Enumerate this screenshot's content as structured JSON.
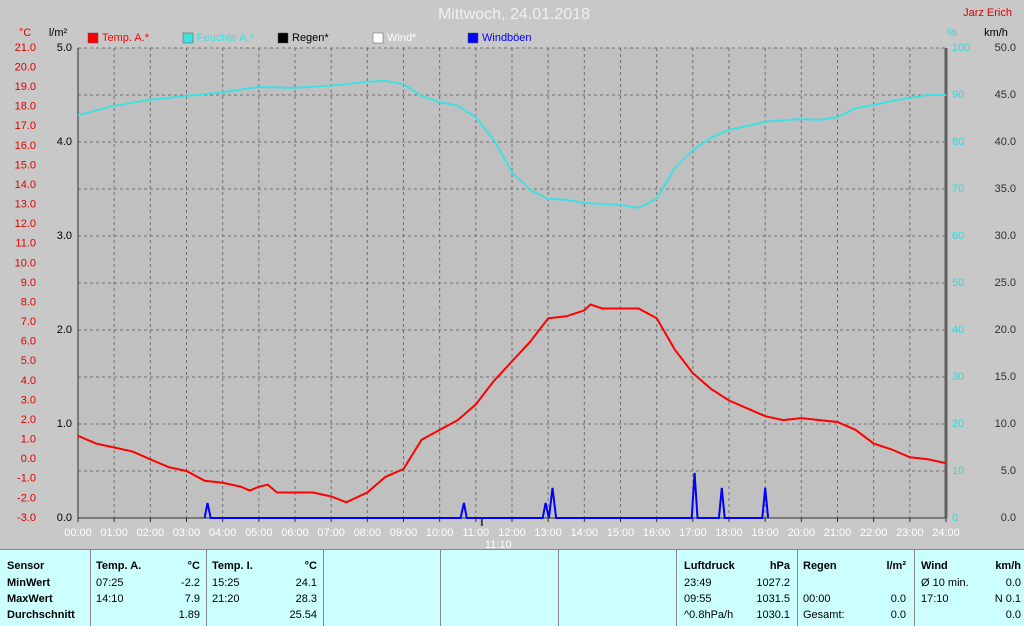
{
  "chart_data": {
    "type": "line",
    "title": "Mittwoch, 24.01.2018",
    "author": "Jarz Erich",
    "ylabel": "°C",
    "y2label": "%",
    "y3label": "l/m²",
    "y4label": "km/h",
    "xlim": [
      0,
      24
    ],
    "xticks": [
      {
        "value": 0,
        "label": "00:00"
      },
      {
        "value": 1,
        "label": "01:00"
      },
      {
        "value": 2,
        "label": "02:00"
      },
      {
        "value": 3,
        "label": "03:00"
      },
      {
        "value": 4,
        "label": "04:00"
      },
      {
        "value": 5,
        "label": "05:00"
      },
      {
        "value": 6,
        "label": "06:00"
      },
      {
        "value": 7,
        "label": "07:00"
      },
      {
        "value": 8,
        "label": "08:00"
      },
      {
        "value": 9,
        "label": "09:00"
      },
      {
        "value": 10,
        "label": "10:00"
      },
      {
        "value": 11,
        "label": "11:00"
      },
      {
        "value": 12,
        "label": "12:00"
      },
      {
        "value": 13,
        "label": "13:00"
      },
      {
        "value": 14,
        "label": "14:00"
      },
      {
        "value": 15,
        "label": "15:00"
      },
      {
        "value": 16,
        "label": "16:00"
      },
      {
        "value": 17,
        "label": "17:00"
      },
      {
        "value": 18,
        "label": "18:00"
      },
      {
        "value": 19,
        "label": "19:00"
      },
      {
        "value": 20,
        "label": "20:00"
      },
      {
        "value": 21,
        "label": "21:00"
      },
      {
        "value": 22,
        "label": "22:00"
      },
      {
        "value": 23,
        "label": "23:00"
      },
      {
        "value": 24,
        "label": "24:00"
      }
    ],
    "marker": {
      "value": 11.1667,
      "label": "11:10"
    },
    "ylim": [
      -3,
      21
    ],
    "yticks": [
      {
        "value": -3,
        "label": "-3.0"
      },
      {
        "value": -2,
        "label": "-2.0"
      },
      {
        "value": -1,
        "label": "-1.0"
      },
      {
        "value": 0,
        "label": "0.0"
      },
      {
        "value": 1,
        "label": "1.0"
      },
      {
        "value": 2,
        "label": "2.0"
      },
      {
        "value": 3,
        "label": "3.0"
      },
      {
        "value": 4,
        "label": "4.0"
      },
      {
        "value": 5,
        "label": "5.0"
      },
      {
        "value": 6,
        "label": "6.0"
      },
      {
        "value": 7,
        "label": "7.0"
      },
      {
        "value": 8,
        "label": "8.0"
      },
      {
        "value": 9,
        "label": "9.0"
      },
      {
        "value": 10,
        "label": "10.0"
      },
      {
        "value": 11,
        "label": "11.0"
      },
      {
        "value": 12,
        "label": "12.0"
      },
      {
        "value": 13,
        "label": "13.0"
      },
      {
        "value": 14,
        "label": "14.0"
      },
      {
        "value": 15,
        "label": "15.0"
      },
      {
        "value": 16,
        "label": "16.0"
      },
      {
        "value": 17,
        "label": "17.0"
      },
      {
        "value": 18,
        "label": "18.0"
      },
      {
        "value": 19,
        "label": "19.0"
      },
      {
        "value": 20,
        "label": "20.0"
      },
      {
        "value": 21,
        "label": "21.0"
      }
    ],
    "y2lim": [
      0,
      100
    ],
    "y2ticks": [
      0,
      10,
      20,
      30,
      40,
      50,
      60,
      70,
      80,
      90,
      100
    ],
    "y3lim": [
      0,
      5
    ],
    "y3ticks": [
      {
        "value": 0,
        "label": "0.0"
      },
      {
        "value": 1,
        "label": "1.0"
      },
      {
        "value": 2,
        "label": "2.0"
      },
      {
        "value": 3,
        "label": "3.0"
      },
      {
        "value": 4,
        "label": "4.0"
      },
      {
        "value": 5,
        "label": "5.0"
      }
    ],
    "y4lim": [
      0,
      50
    ],
    "y4ticks": [
      {
        "value": 0,
        "label": "0.0"
      },
      {
        "value": 5,
        "label": "5.0"
      },
      {
        "value": 10,
        "label": "10.0"
      },
      {
        "value": 15,
        "label": "15.0"
      },
      {
        "value": 20,
        "label": "20.0"
      },
      {
        "value": 25,
        "label": "25.0"
      },
      {
        "value": 30,
        "label": "30.0"
      },
      {
        "value": 35,
        "label": "35.0"
      },
      {
        "value": 40,
        "label": "40.0"
      },
      {
        "value": 45,
        "label": "45.0"
      },
      {
        "value": 50,
        "label": "50.0"
      }
    ],
    "grid": true,
    "series": [
      {
        "name": "Temp. A.*",
        "color": "#ff0000",
        "axis": "y",
        "x": [
          0,
          0.5,
          1,
          1.5,
          2,
          2.5,
          3,
          3.5,
          4,
          4.5,
          4.75,
          5,
          5.25,
          5.5,
          6,
          6.5,
          7,
          7.42,
          8,
          8.5,
          9,
          9.5,
          10,
          10.5,
          11,
          11.5,
          12,
          12.5,
          13,
          13.5,
          14,
          14.17,
          14.5,
          15,
          15.5,
          16,
          16.5,
          17,
          17.5,
          18,
          18.5,
          19,
          19.5,
          20,
          20.5,
          21,
          21.5,
          22,
          22.5,
          23,
          23.5,
          24
        ],
        "values": [
          1.2,
          0.8,
          0.6,
          0.4,
          0.0,
          -0.4,
          -0.6,
          -1.1,
          -1.2,
          -1.4,
          -1.6,
          -1.4,
          -1.3,
          -1.7,
          -1.7,
          -1.7,
          -1.9,
          -2.2,
          -1.7,
          -0.9,
          -0.5,
          1.0,
          1.5,
          2.0,
          2.8,
          4.0,
          5.0,
          6.0,
          7.2,
          7.3,
          7.6,
          7.9,
          7.7,
          7.7,
          7.7,
          7.2,
          5.6,
          4.4,
          3.6,
          3.0,
          2.6,
          2.2,
          2.0,
          2.1,
          2.0,
          1.9,
          1.5,
          0.8,
          0.5,
          0.1,
          0.0,
          -0.2
        ]
      },
      {
        "name": "Feuchte A.*",
        "color": "#40e0e0",
        "axis": "y2",
        "x": [
          0,
          1,
          2,
          3,
          4,
          5,
          6,
          7,
          8,
          8.5,
          9,
          9.5,
          10,
          10.5,
          11,
          11.5,
          12,
          12.5,
          13,
          13.5,
          14,
          15,
          15.5,
          16,
          16.5,
          17,
          17.5,
          18,
          18.5,
          19,
          20,
          20.5,
          21,
          21.5,
          22,
          22.5,
          23,
          23.5,
          24
        ],
        "values": [
          85.7,
          87.7,
          89,
          89.8,
          90.6,
          91.7,
          91.5,
          92,
          92.8,
          93,
          92.3,
          89.8,
          88.5,
          87.7,
          85.3,
          80.4,
          73.6,
          69.8,
          67.9,
          67.7,
          67,
          66.6,
          66,
          67.9,
          74.5,
          78.3,
          80.9,
          82.6,
          83.4,
          84.3,
          84.9,
          84.7,
          85.3,
          87.2,
          87.9,
          88.7,
          89.4,
          90,
          90
        ]
      },
      {
        "name": "Regen*",
        "color": "#000000",
        "axis": "y3"
      },
      {
        "name": "Wind*",
        "color": "#ffffff",
        "axis": "y4"
      },
      {
        "name": "Windböen",
        "color": "#0000ff",
        "axis": "y4",
        "x": [
          3.5,
          3.58,
          3.67,
          10.58,
          10.67,
          10.75,
          12.85,
          12.93,
          13.02,
          13.12,
          13.22,
          16.97,
          17.05,
          17.13,
          17.72,
          17.8,
          17.88,
          18.92,
          19,
          19.08
        ],
        "values": [
          0,
          1.6,
          0,
          0,
          1.6,
          0,
          0,
          1.6,
          0,
          3.2,
          0,
          0,
          4.8,
          0,
          0,
          3.2,
          0,
          0,
          3.2,
          0
        ]
      }
    ]
  },
  "table": {
    "header": [
      "Sensor",
      "Temp. A.",
      "°C",
      "Temp. I.",
      "°C",
      "Luftdruck",
      "hPa",
      "Regen",
      "l/m²",
      "Wind",
      "km/h"
    ],
    "rows": [
      [
        "MinWert",
        "07:25",
        "-2.2",
        "15:25",
        "24.1",
        "23:49",
        "1027.2",
        null,
        null,
        "Ø 10 min.",
        "0.0"
      ],
      [
        "MaxWert",
        "14:10",
        "7.9",
        "21:20",
        "28.3",
        "09:55",
        "1031.5",
        "00:00",
        "0.0",
        "17:10",
        "N 0.1"
      ],
      [
        "Durchschnitt",
        null,
        "1.89",
        null,
        "25.54",
        "^0.8hPa/h",
        "1030.1",
        "Gesamt:",
        "0.0",
        null,
        "0.0"
      ]
    ]
  }
}
